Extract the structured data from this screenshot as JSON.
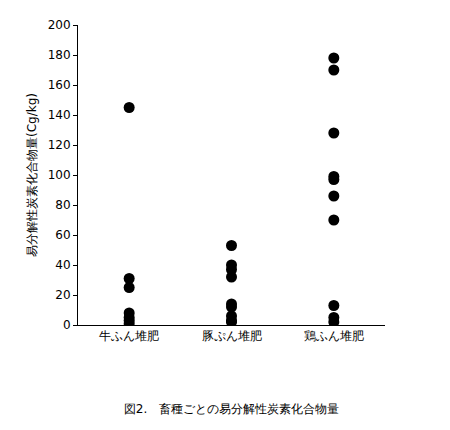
{
  "chart_data": {
    "type": "strip",
    "title": "図2.　畜種ごとの易分解性炭素化合物量",
    "y_label": "易分解性炭素化合物量(Cg/kg)",
    "categories": [
      "牛ふん堆肥",
      "豚ぷん堆肥",
      "鶏ふん堆肥"
    ],
    "values": [
      [
        145,
        31,
        25,
        8,
        5,
        3,
        1
      ],
      [
        53,
        40,
        37,
        32,
        14,
        12,
        6,
        3,
        2
      ],
      [
        178,
        170,
        128,
        99,
        97,
        86,
        70,
        13,
        5,
        2
      ]
    ],
    "color": "#000000",
    "marker": "circle",
    "ylim": [
      0,
      200
    ],
    "yticks": [
      0,
      20,
      40,
      60,
      80,
      100,
      120,
      140,
      160,
      180,
      200
    ],
    "grid": false
  }
}
